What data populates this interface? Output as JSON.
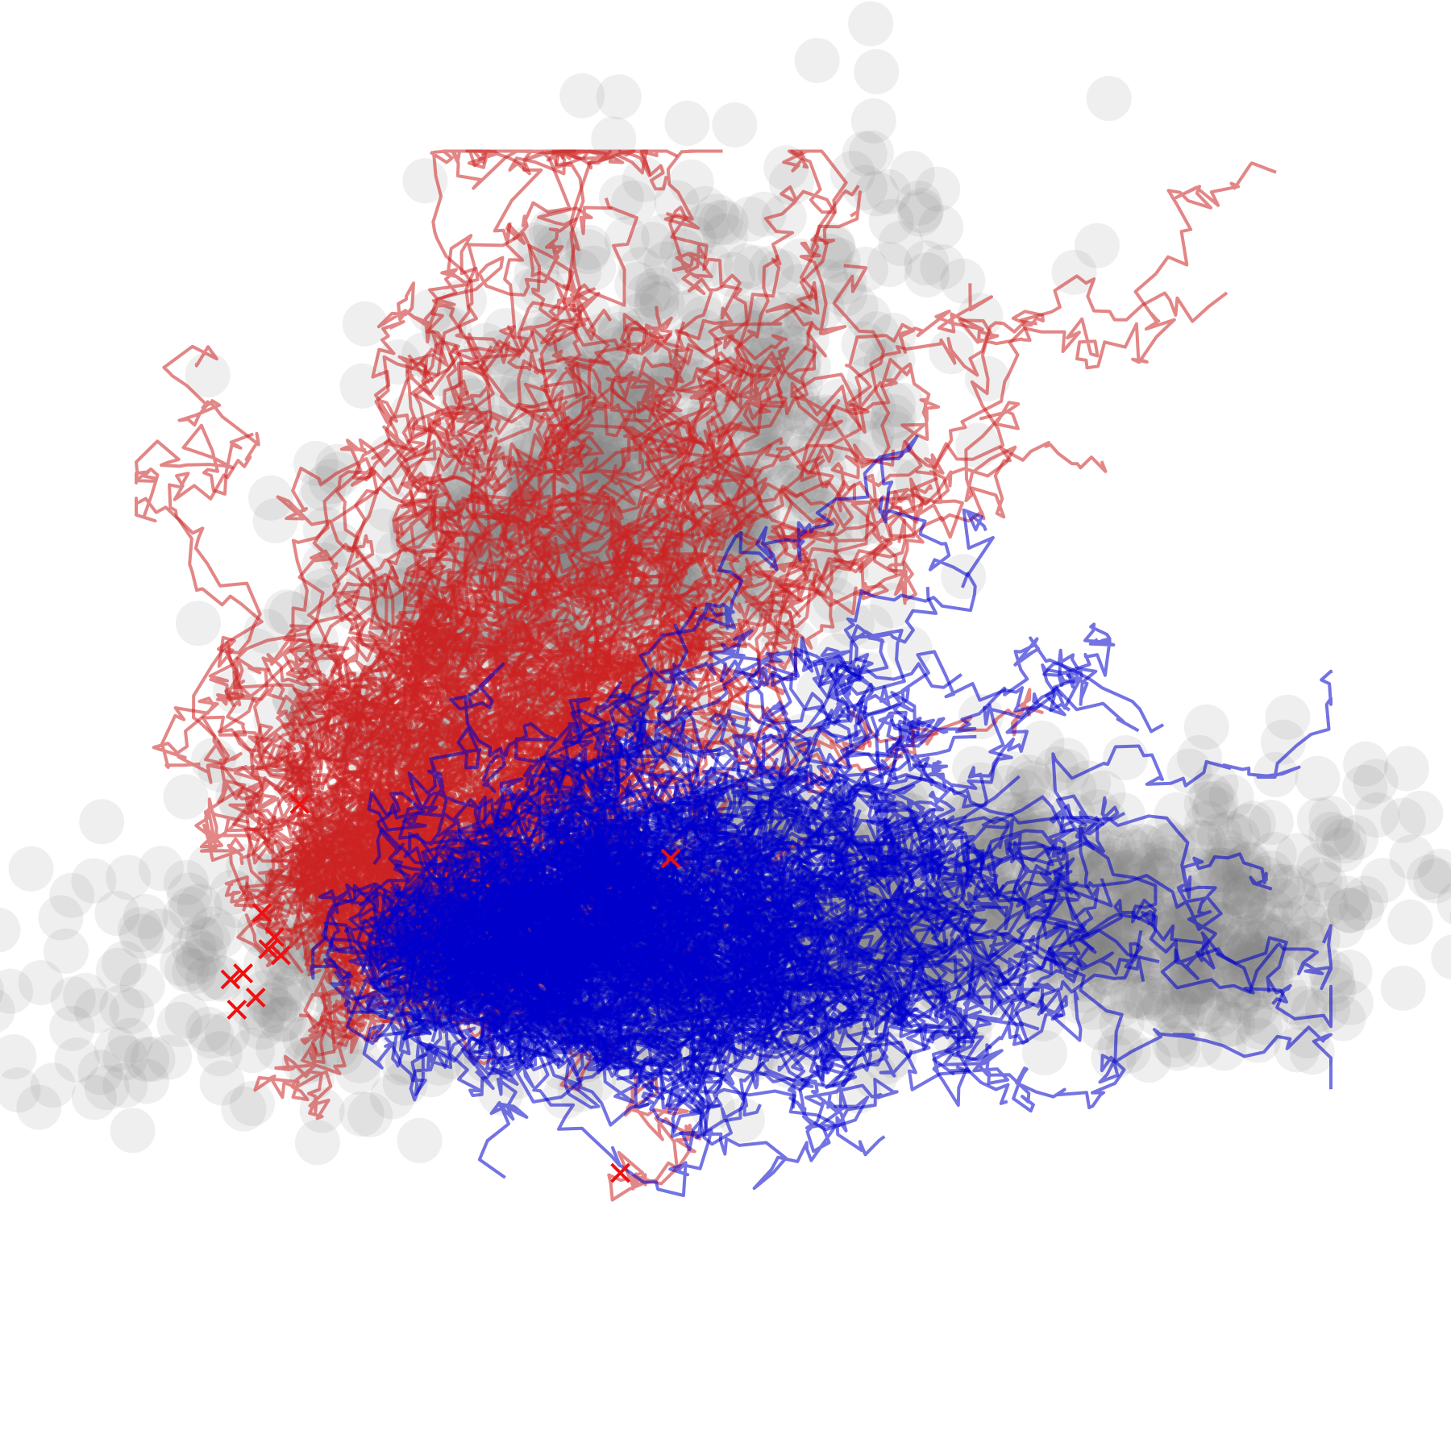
{
  "chart_data": {
    "type": "scatter",
    "title": "",
    "xlabel": "",
    "ylabel": "",
    "grid": false,
    "axes_visible": false,
    "legend": "none",
    "xlim": [
      -1.0,
      1.0
    ],
    "ylim": [
      -1.0,
      1.0
    ],
    "background_cloud": {
      "color": "#808080",
      "opacity": 0.13,
      "num_points": 2600,
      "clusters": [
        {
          "cx": -0.2,
          "cy": 0.35,
          "sx": 0.3,
          "sy": 0.18,
          "angle_deg": 48,
          "weight": 0.42
        },
        {
          "cx": 0.02,
          "cy": -0.33,
          "sx": 0.52,
          "sy": 0.11,
          "angle_deg": 6,
          "weight": 0.5
        },
        {
          "cx": 0.72,
          "cy": -0.38,
          "sx": 0.14,
          "sy": 0.07,
          "angle_deg": -14,
          "weight": 0.08
        }
      ]
    },
    "series": [
      {
        "name": "",
        "color": "#cc2222",
        "line_opacity": 0.55,
        "count": 140,
        "start": {
          "cx": -0.62,
          "cy": -0.3,
          "sx": 0.05,
          "sy": 0.07
        },
        "drift": {
          "dx": 0.0045,
          "dy": 0.006
        },
        "noise": 0.02,
        "steps": 120,
        "end_marker": "x"
      },
      {
        "name": "",
        "color": "#0000cc",
        "line_opacity": 0.55,
        "count": 170,
        "start": {
          "cx": -0.4,
          "cy": -0.38,
          "sx": 0.1,
          "sy": 0.06
        },
        "drift": {
          "dx": 0.0055,
          "dy": 0.0008
        },
        "noise": 0.02,
        "steps": 110,
        "end_marker": "none"
      }
    ],
    "red_x_markers": [
      [
        -0.75,
        -0.31
      ],
      [
        -0.73,
        -0.35
      ],
      [
        -0.72,
        -0.38
      ],
      [
        -0.74,
        -0.37
      ],
      [
        -0.78,
        -0.41
      ],
      [
        -0.8,
        -0.42
      ],
      [
        -0.76,
        -0.45
      ],
      [
        -0.79,
        -0.47
      ],
      [
        -0.1,
        -0.22
      ],
      [
        -0.69,
        -0.13
      ],
      [
        -0.18,
        -0.74
      ]
    ]
  }
}
